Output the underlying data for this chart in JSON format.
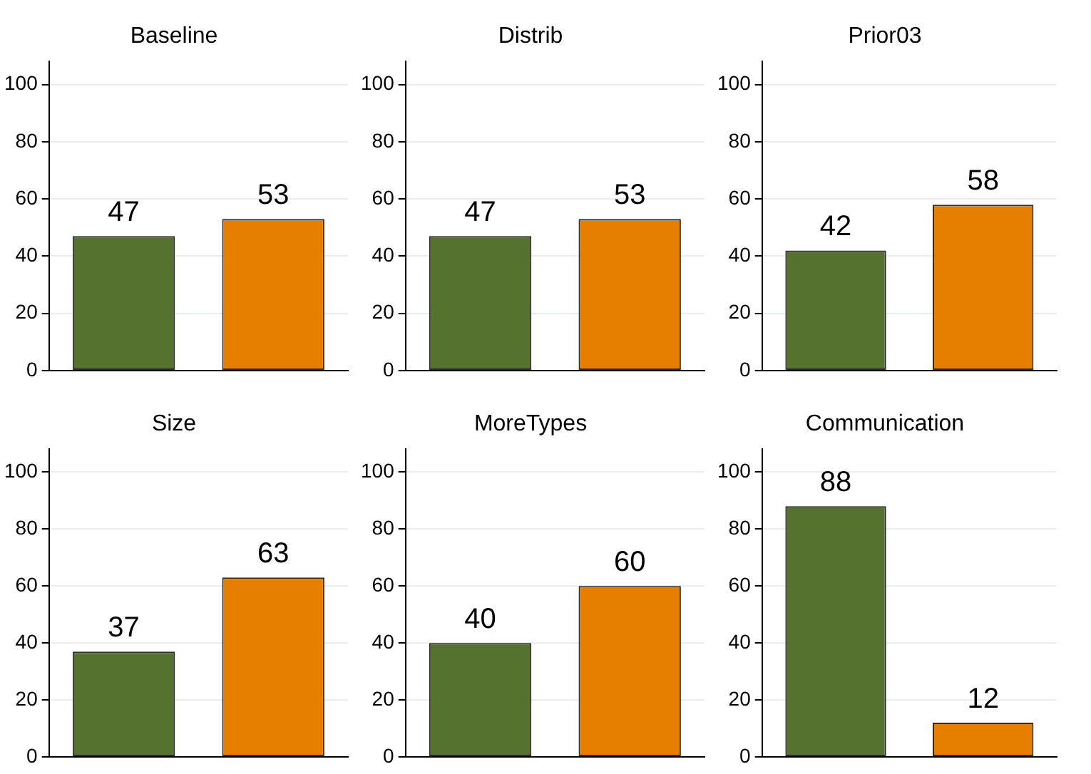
{
  "chart_data": [
    {
      "type": "bar",
      "title": "Baseline",
      "categories": [
        null,
        null
      ],
      "values": [
        47,
        53
      ],
      "colors": [
        "#56722f",
        "#e67e00"
      ],
      "ylim": [
        0,
        108
      ],
      "yticks": [
        0,
        20,
        40,
        60,
        80,
        100
      ],
      "grid": "y",
      "data_labels": true,
      "tick_labels": "y"
    },
    {
      "type": "bar",
      "title": "Distrib",
      "categories": [
        null,
        null
      ],
      "values": [
        47,
        53
      ],
      "colors": [
        "#56722f",
        "#e67e00"
      ],
      "ylim": [
        0,
        108
      ],
      "yticks": [
        0,
        20,
        40,
        60,
        80,
        100
      ],
      "grid": "y",
      "data_labels": true,
      "tick_labels": "y"
    },
    {
      "type": "bar",
      "title": "Prior03",
      "categories": [
        null,
        null
      ],
      "values": [
        42,
        58
      ],
      "colors": [
        "#56722f",
        "#e67e00"
      ],
      "ylim": [
        0,
        108
      ],
      "yticks": [
        0,
        20,
        40,
        60,
        80,
        100
      ],
      "grid": "y",
      "data_labels": true,
      "tick_labels": "y"
    },
    {
      "type": "bar",
      "title": "Size",
      "categories": [
        null,
        null
      ],
      "values": [
        37,
        63
      ],
      "colors": [
        "#56722f",
        "#e67e00"
      ],
      "ylim": [
        0,
        108
      ],
      "yticks": [
        0,
        20,
        40,
        60,
        80,
        100
      ],
      "grid": "y",
      "data_labels": true,
      "tick_labels": "y"
    },
    {
      "type": "bar",
      "title": "MoreTypes",
      "categories": [
        null,
        null
      ],
      "values": [
        40,
        60
      ],
      "colors": [
        "#56722f",
        "#e67e00"
      ],
      "ylim": [
        0,
        108
      ],
      "yticks": [
        0,
        20,
        40,
        60,
        80,
        100
      ],
      "grid": "y",
      "data_labels": true,
      "tick_labels": "y"
    },
    {
      "type": "bar",
      "title": "Communication",
      "categories": [
        null,
        null
      ],
      "values": [
        88,
        12
      ],
      "colors": [
        "#56722f",
        "#e67e00"
      ],
      "ylim": [
        0,
        108
      ],
      "yticks": [
        0,
        20,
        40,
        60,
        80,
        100
      ],
      "grid": "y",
      "data_labels": true,
      "tick_labels": "y"
    }
  ]
}
